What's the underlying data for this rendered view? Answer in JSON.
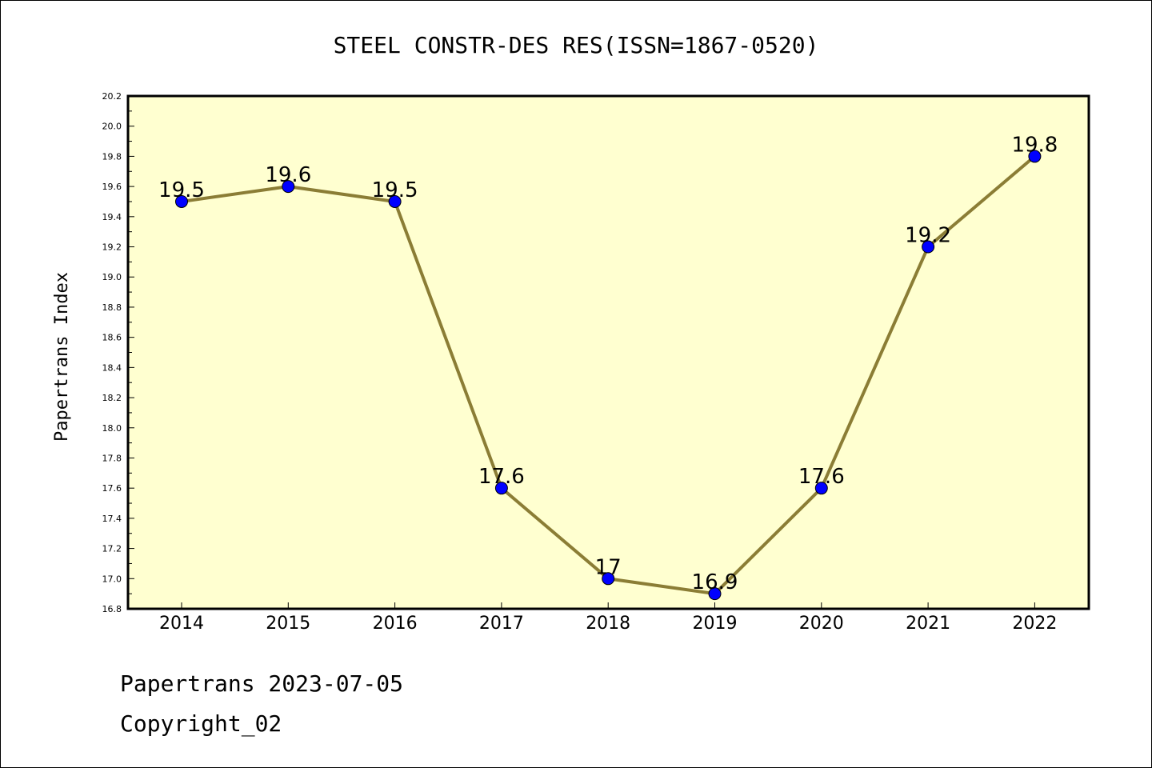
{
  "footer": {
    "line1": "Papertrans 2023-07-05",
    "line2": "Copyright_02"
  },
  "colors": {
    "plot_background": "#ffffd0",
    "line": "#8b7d35",
    "marker": "#0000ff"
  },
  "chart_data": {
    "type": "line",
    "title": "STEEL CONSTR-DES RES(ISSN=1867-0520)",
    "xlabel": "",
    "ylabel": "Papertrans Index",
    "categories": [
      "2014",
      "2015",
      "2016",
      "2017",
      "2018",
      "2019",
      "2020",
      "2021",
      "2022"
    ],
    "series": [
      {
        "values": [
          19.5,
          19.6,
          19.5,
          17.6,
          17.0,
          16.9,
          17.6,
          19.2,
          19.8
        ],
        "labels": [
          "19.5",
          "19.6",
          "19.5",
          "17.6",
          "17",
          "16.9",
          "17.6",
          "19.2",
          "19.8"
        ]
      }
    ],
    "ylim": [
      16.8,
      20.2
    ],
    "yticks": [
      "16.8",
      "17.0",
      "17.2",
      "17.4",
      "17.6",
      "17.8",
      "18.0",
      "18.2",
      "18.4",
      "18.6",
      "18.8",
      "19.0",
      "19.2",
      "19.4",
      "19.6",
      "19.8",
      "20.0",
      "20.2"
    ],
    "grid": false,
    "legend": "none"
  }
}
